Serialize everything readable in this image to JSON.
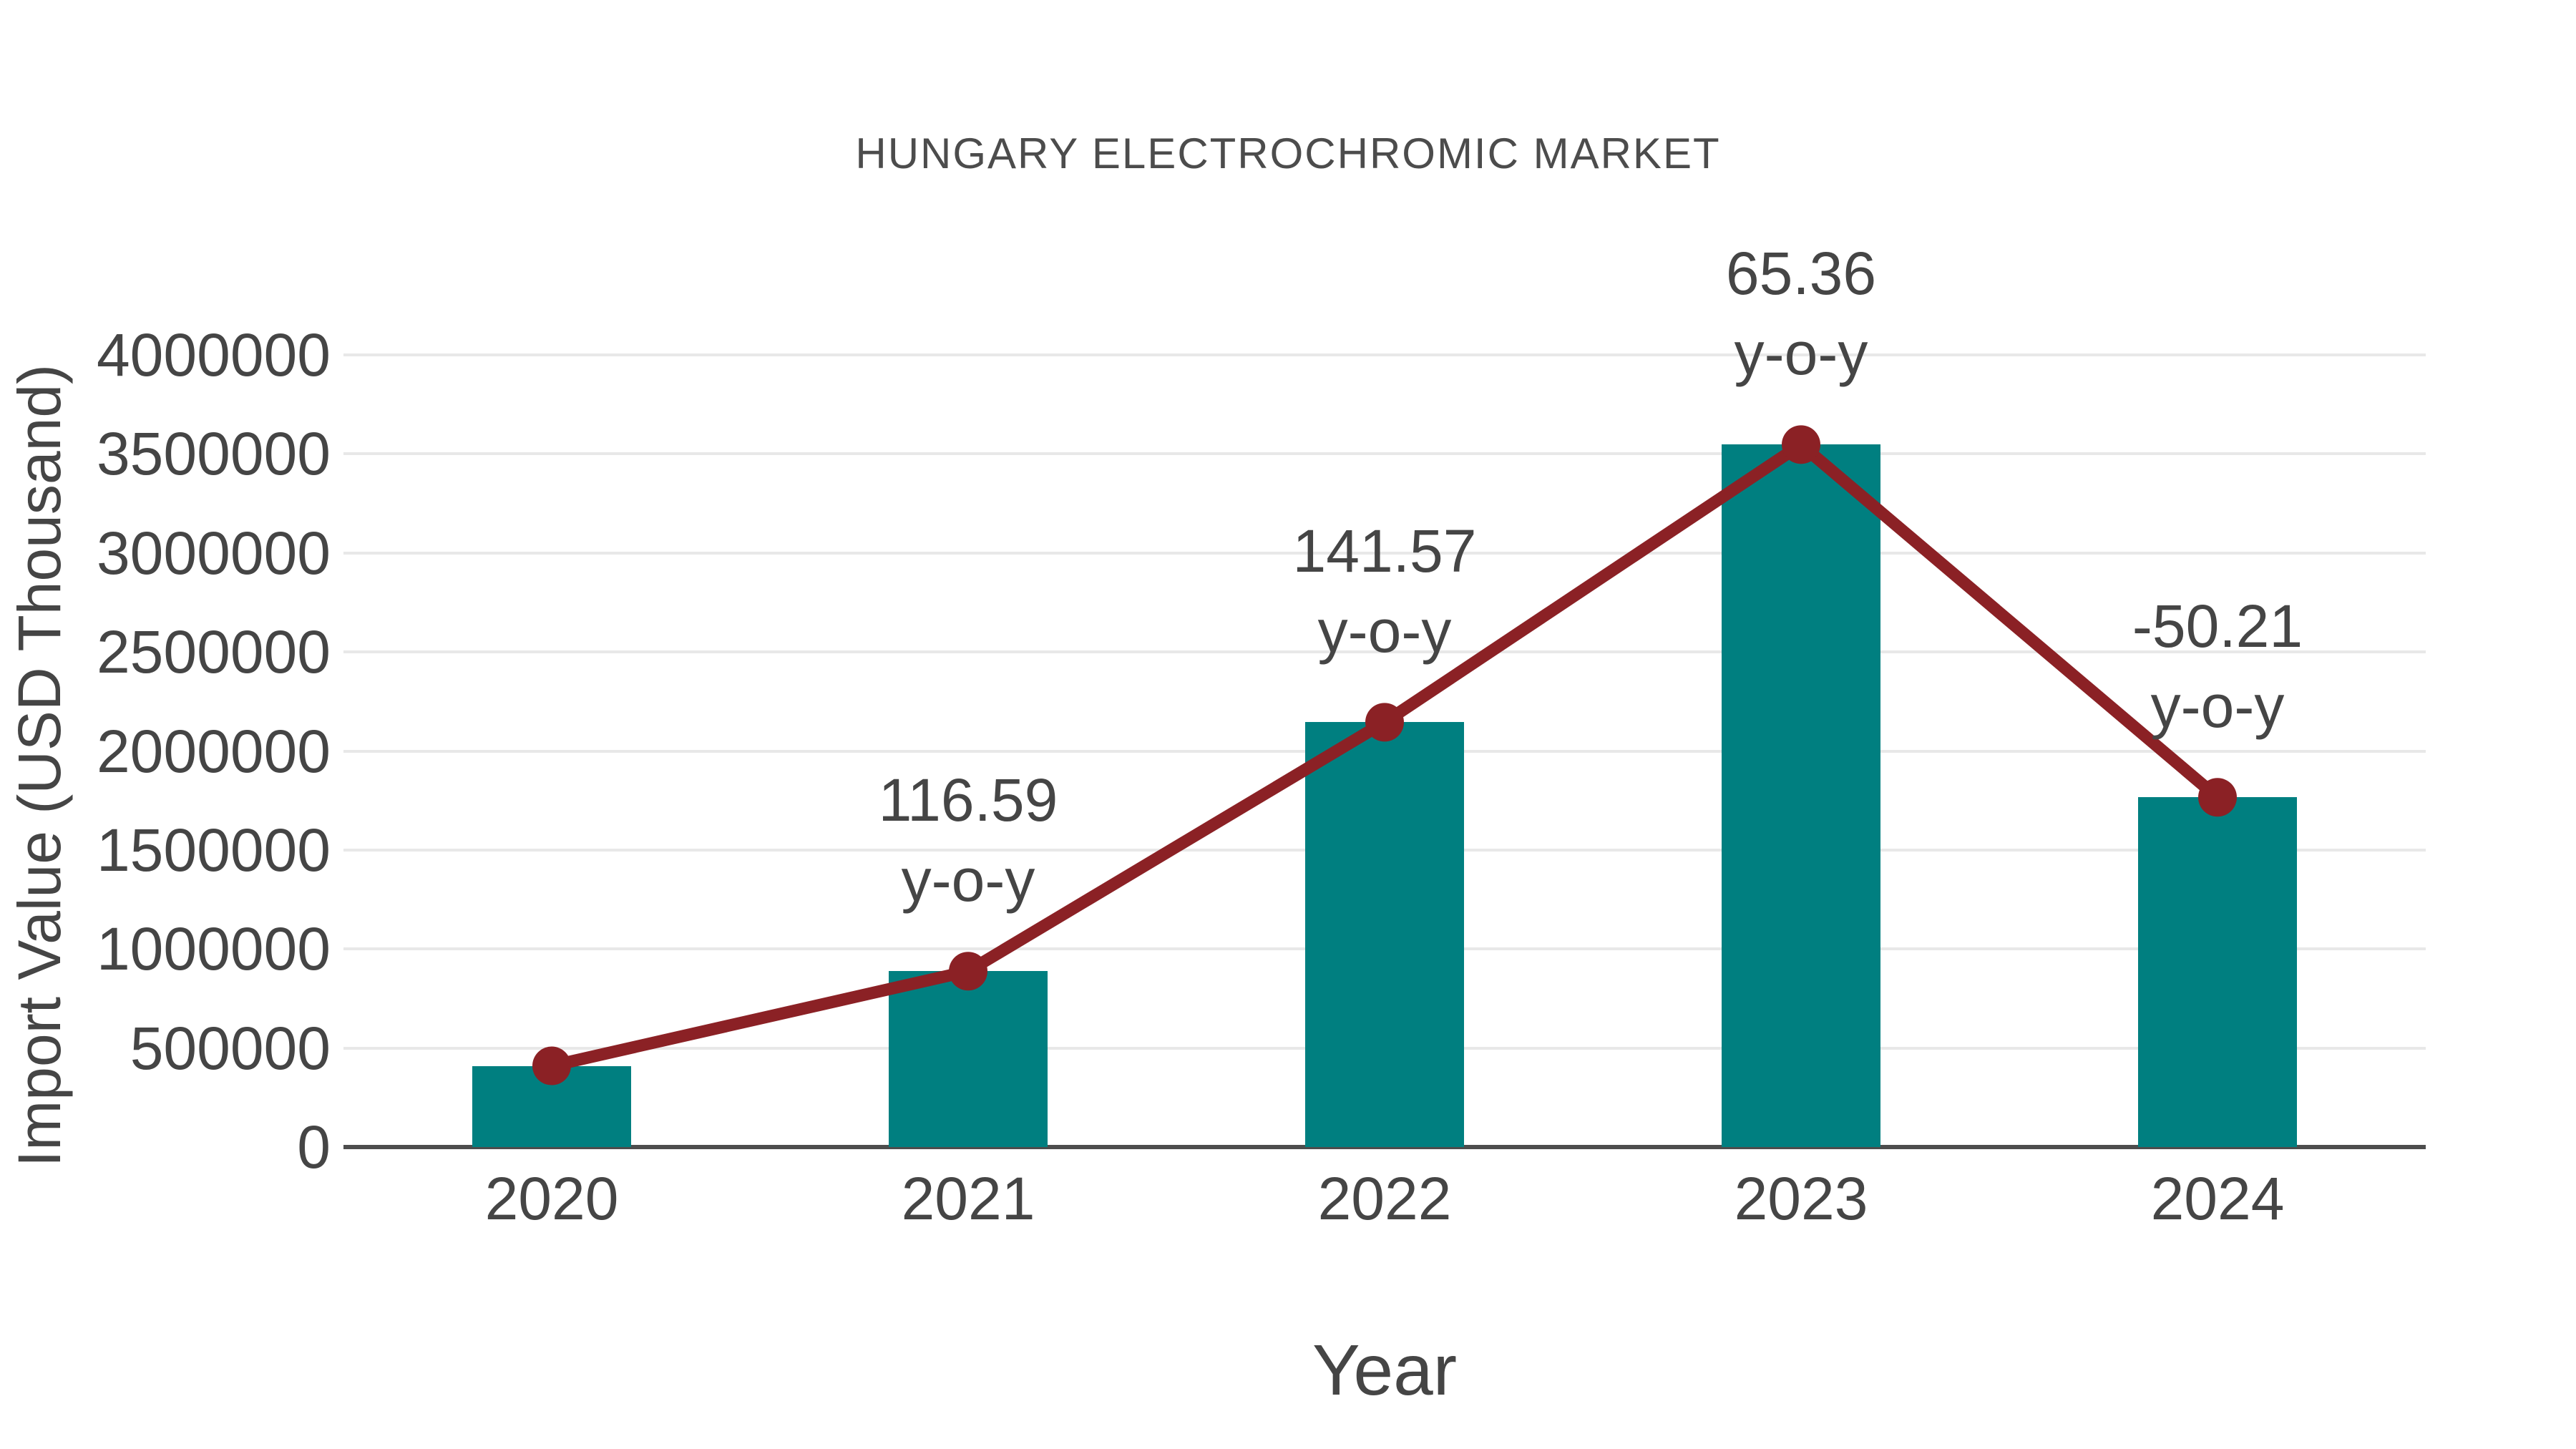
{
  "title": "HUNGARY ELECTROCHROMIC MARKET",
  "colors": {
    "bar": "#007f80",
    "line": "#8b2125",
    "text": "#454545",
    "grid": "#e8e8e8",
    "axis": "#4d4d4d"
  },
  "chart_data": {
    "type": "bar",
    "subtype": "bar-with-line-overlay",
    "title": "HUNGARY ELECTROCHROMIC MARKET",
    "xlabel": "Year",
    "ylabel": "Import Value (USD Thousand)",
    "categories": [
      "2020",
      "2021",
      "2022",
      "2023",
      "2024"
    ],
    "series": [
      {
        "name": "Import Value (USD Thousand)",
        "type": "bar",
        "values": [
          410000,
          888000,
          2145000,
          3547000,
          1766000
        ]
      },
      {
        "name": "y-o-y growth (%)",
        "type": "line",
        "values": [
          null,
          116.59,
          141.57,
          65.36,
          -50.21
        ]
      }
    ],
    "annotation_suffix": "y-o-y",
    "ylim": [
      0,
      4000000
    ],
    "yticks": [
      0,
      500000,
      1000000,
      1500000,
      2000000,
      2500000,
      3000000,
      3500000,
      4000000
    ],
    "grid": "horizontal",
    "legend": "none"
  }
}
